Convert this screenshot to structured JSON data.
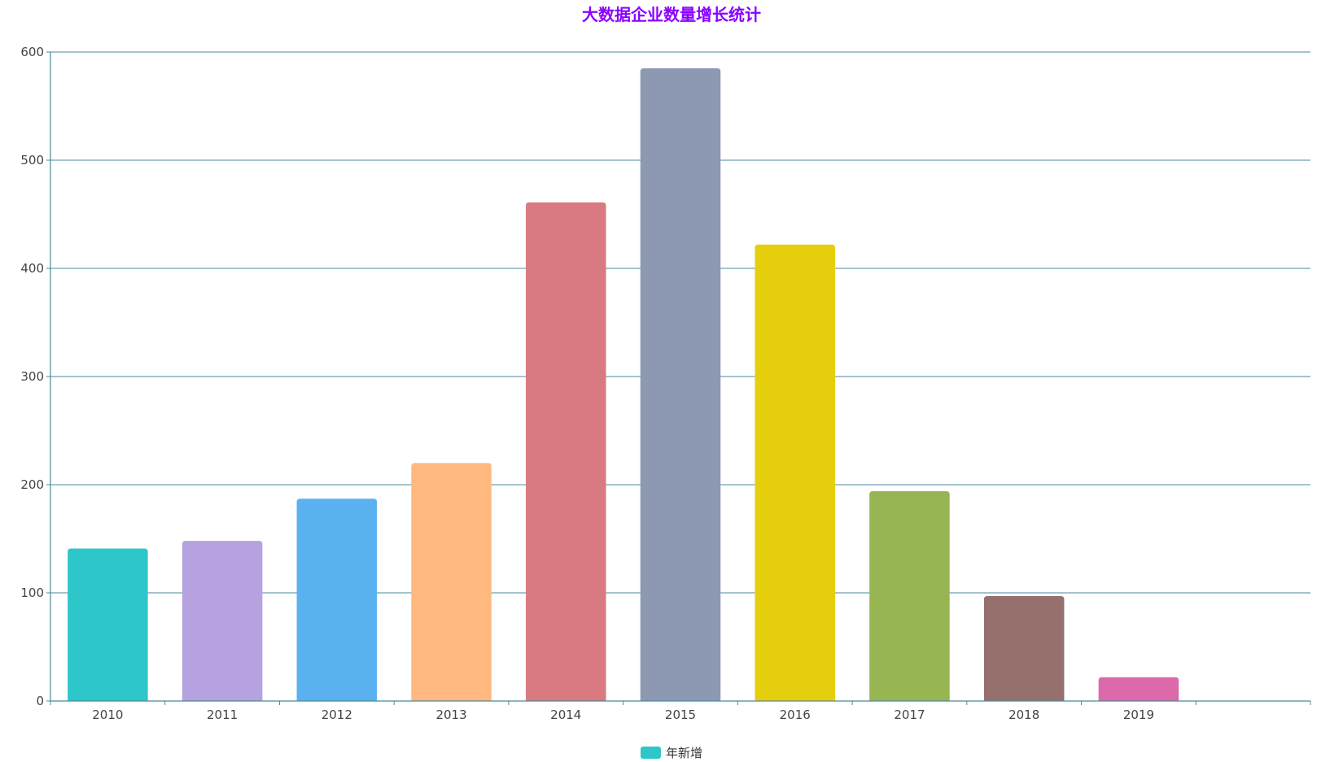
{
  "chart_data": {
    "type": "bar",
    "title": "大数据企业数量增长统计",
    "categories": [
      "2010",
      "2011",
      "2012",
      "2013",
      "2014",
      "2015",
      "2016",
      "2017",
      "2018",
      "2019"
    ],
    "series": [
      {
        "name": "年新增",
        "values": [
          141,
          148,
          187,
          220,
          461,
          585,
          422,
          194,
          97,
          22
        ]
      }
    ],
    "bar_colors": [
      "#2ec7c9",
      "#b6a2de",
      "#5ab1ef",
      "#ffb980",
      "#d87a80",
      "#8d98b3",
      "#e5cf0d",
      "#97b552",
      "#95706d",
      "#dc69aa"
    ],
    "ylim": [
      0,
      600
    ],
    "yticks": [
      0,
      100,
      200,
      300,
      400,
      500,
      600
    ],
    "grid": true,
    "legend_position": "bottom-center",
    "legend_color": "#2ec7c9",
    "axis_color": "#4a8a9c"
  }
}
